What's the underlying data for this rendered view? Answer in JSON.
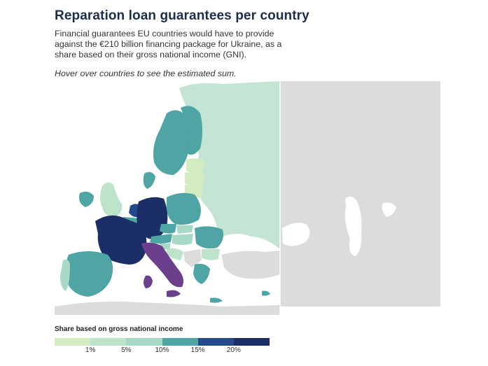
{
  "header": {
    "title": "Reparation loan guarantees per country",
    "subtitle": "Financial guarantees EU countries would have to provide against the €210 billion financing package for Ukraine, as a share based on their gross national income (GNI).",
    "hint": "Hover over countries to see the estimated sum."
  },
  "legend": {
    "title": "Share based on gross national income",
    "bins": [
      {
        "color": "#d2ebbf"
      },
      {
        "color": "#bde3cb"
      },
      {
        "color": "#a8d9c6"
      },
      {
        "color": "#4ea5a4"
      },
      {
        "color": "#234a8a"
      },
      {
        "color": "#1b2e66"
      }
    ],
    "labels": [
      "1%",
      "5%",
      "10%",
      "15%",
      "20%"
    ]
  },
  "colors": {
    "non_eu": "#dcdcdc",
    "eastern_neighbors": "#c4e5d4",
    "water": "#ffffff",
    "borders": "#ffffff",
    "italy": "#6b3f8c"
  }
}
